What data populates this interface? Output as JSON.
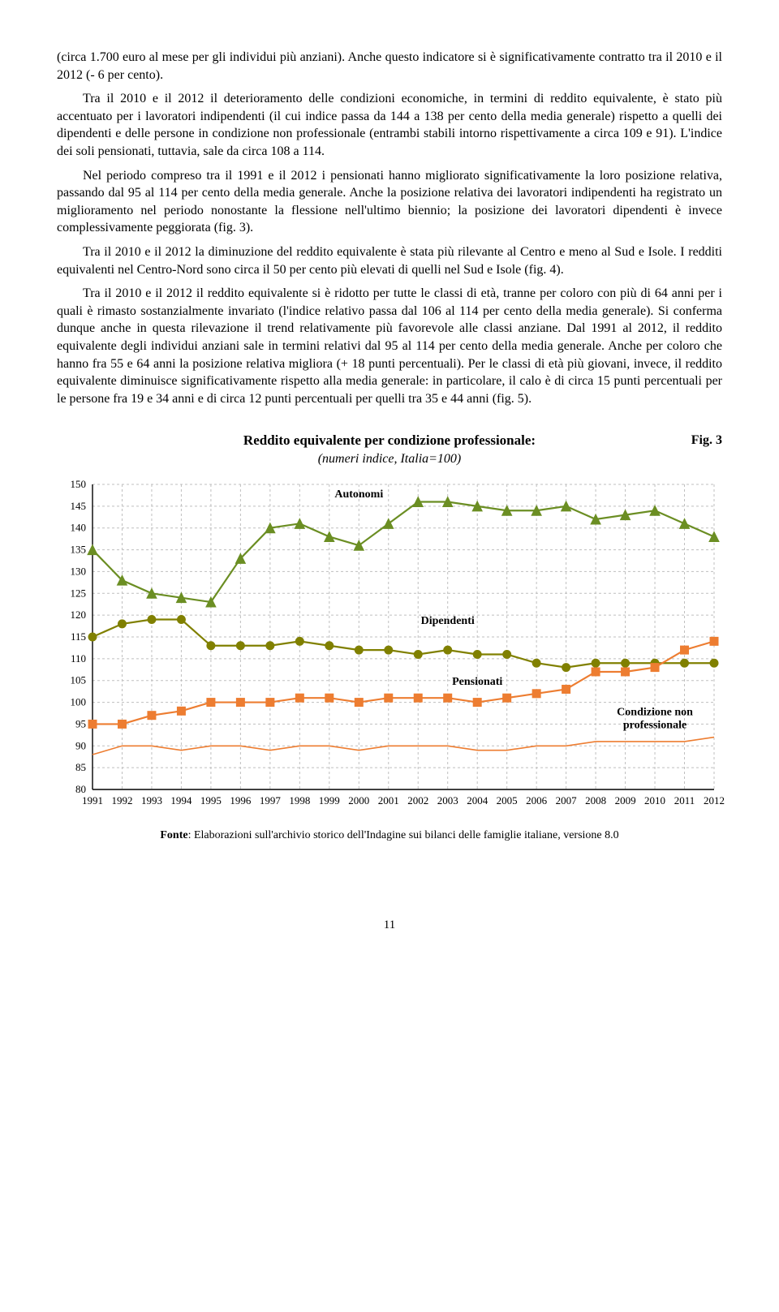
{
  "paragraphs": {
    "p1": "(circa 1.700 euro al mese per gli individui più anziani). Anche questo indicatore si è significativamente contratto tra il 2010 e il 2012 (- 6 per cento).",
    "p2": "Tra il 2010 e il 2012 il deterioramento delle condizioni economiche, in termini di reddito equivalente, è stato più accentuato per i lavoratori indipendenti (il cui indice passa da 144 a 138 per cento della media generale) rispetto a quelli dei dipendenti e delle persone in condizione non professionale (entrambi stabili intorno rispettivamente a circa 109 e 91). L'indice dei soli pensionati, tuttavia, sale da circa 108 a 114.",
    "p3": "Nel periodo compreso tra il 1991 e il 2012 i pensionati hanno migliorato significativamente la loro posizione relativa, passando dal 95 al 114 per cento della media generale. Anche la posizione relativa dei lavoratori indipendenti ha registrato un miglioramento nel periodo nonostante la flessione nell'ultimo biennio; la posizione dei lavoratori dipendenti è invece complessivamente peggiorata (fig. 3).",
    "p4": "Tra il 2010 e il 2012 la diminuzione del reddito equivalente è stata più rilevante al Centro e meno al Sud e Isole. I redditi equivalenti nel Centro-Nord sono circa il 50 per cento più elevati di quelli nel Sud e Isole (fig. 4).",
    "p5": "Tra il 2010 e il 2012 il reddito equivalente si è ridotto per tutte le classi di età, tranne per coloro con più di 64 anni per i quali è rimasto sostanzialmente invariato (l'indice relativo passa dal 106 al 114 per cento della media generale). Si conferma dunque anche in questa rilevazione il trend relativamente più favorevole alle classi anziane. Dal 1991 al 2012, il reddito equivalente degli individui anziani sale in termini relativi dal 95 al 114 per cento della media generale. Anche per coloro che hanno fra 55 e 64 anni la posizione relativa migliora (+ 18 punti percentuali). Per le classi di età più giovani, invece, il reddito equivalente diminuisce significativamente rispetto alla media generale: in particolare, il calo è di circa 15 punti percentuali per le persone fra 19 e 34 anni e di circa 12 punti percentuali per quelli tra 35 e 44 anni (fig. 5)."
  },
  "figure": {
    "label": "Fig. 3",
    "title": "Reddito equivalente per condizione professionale:",
    "subtitle": "(numeri indice, Italia=100)",
    "fonte_bold": "Fonte",
    "fonte_text": ": Elaborazioni sull'archivio storico dell'Indagine sui bilanci delle famiglie italiane, versione 8.0",
    "chart": {
      "type": "line",
      "x_years": [
        1991,
        1992,
        1993,
        1994,
        1995,
        1996,
        1997,
        1998,
        1999,
        2000,
        2001,
        2002,
        2003,
        2004,
        2005,
        2006,
        2007,
        2008,
        2009,
        2010,
        2011,
        2012
      ],
      "y_min": 80,
      "y_max": 150,
      "y_step": 5,
      "background_color": "#ffffff",
      "grid_color": "#bfbfbf",
      "axis_color": "#000000",
      "tick_fontsize": 13,
      "series": [
        {
          "name": "Autonomi",
          "label": "Autonomi",
          "color": "#6b8e23",
          "marker": "triangle",
          "marker_size": 6,
          "line_width": 2.2,
          "values": [
            135,
            128,
            125,
            124,
            123,
            133,
            140,
            141,
            138,
            136,
            141,
            146,
            146,
            145,
            144,
            144,
            145,
            142,
            143,
            144,
            141,
            138
          ],
          "label_x_index": 9,
          "label_y": 147
        },
        {
          "name": "Dipendenti",
          "label": "Dipendenti",
          "color": "#808000",
          "marker": "circle",
          "marker_size": 5,
          "line_width": 2.2,
          "values": [
            115,
            118,
            119,
            119,
            113,
            113,
            113,
            114,
            113,
            112,
            112,
            111,
            112,
            111,
            111,
            109,
            108,
            109,
            109,
            109,
            109,
            109
          ],
          "label_x_index": 12,
          "label_y": 118
        },
        {
          "name": "Pensionati",
          "label": "Pensionati",
          "color": "#ed7d31",
          "marker": "square",
          "marker_size": 5,
          "line_width": 2.2,
          "values": [
            95,
            95,
            97,
            98,
            100,
            100,
            100,
            101,
            101,
            100,
            101,
            101,
            101,
            100,
            101,
            102,
            103,
            107,
            107,
            108,
            112,
            114
          ],
          "label_x_index": 13,
          "label_y": 104
        },
        {
          "name": "Condizione non professionale",
          "label": "Condizione non\nprofessionale",
          "color": "#ed7d31",
          "marker": "none",
          "marker_size": 0,
          "line_width": 1.6,
          "values": [
            88,
            90,
            90,
            89,
            90,
            90,
            89,
            90,
            90,
            89,
            90,
            90,
            90,
            89,
            89,
            90,
            90,
            91,
            91,
            91,
            91,
            92
          ],
          "label_x_index": 19,
          "label_y": 97
        }
      ]
    }
  },
  "page_number": "11"
}
